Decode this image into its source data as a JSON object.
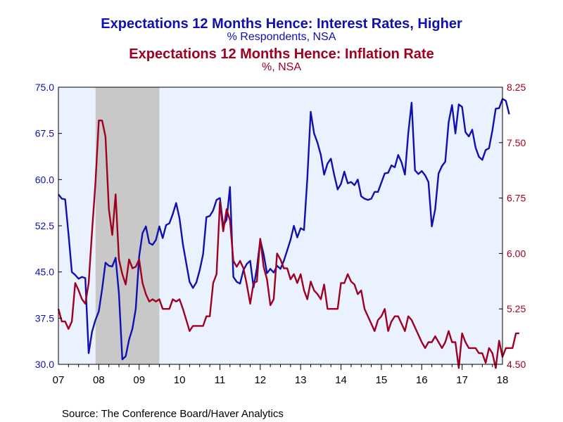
{
  "chart_data": {
    "type": "line",
    "titles": [
      {
        "text": "Expectations 12 Months Hence: Interest Rates, Higher",
        "color": "#1010b0"
      },
      {
        "text": "% Respondents, NSA",
        "color": "#1010b0"
      },
      {
        "text": "Expectations 12 Months Hence: Inflation Rate",
        "color": "#a00020"
      },
      {
        "text": "%, NSA",
        "color": "#a00020"
      }
    ],
    "source": "Source:  The Conference Board/Haver Analytics",
    "x_tick_labels": [
      "07",
      "08",
      "09",
      "10",
      "11",
      "12",
      "13",
      "14",
      "15",
      "16",
      "17",
      "18"
    ],
    "x_range": [
      2007.0,
      2018.0
    ],
    "left_axis": {
      "ticks": [
        "75.0",
        "67.5",
        "60.0",
        "52.5",
        "45.0",
        "37.5",
        "30.0"
      ],
      "ylim": [
        30.0,
        75.0
      ],
      "color": "#1010b0"
    },
    "right_axis": {
      "ticks": [
        "8.25",
        "7.50",
        "6.75",
        "6.00",
        "5.25",
        "4.50"
      ],
      "ylim": [
        4.5,
        8.25
      ],
      "color": "#a00020"
    },
    "recession": {
      "start": 2007.92,
      "end": 2009.5,
      "color": "#c8c8c8"
    },
    "plot_background": "#eaf2ff",
    "series": [
      {
        "axis": "left",
        "color": "#1010b0",
        "x_start": 2007.0,
        "step": 0.083333,
        "values": [
          57.6,
          56.9,
          56.8,
          51.2,
          45,
          44.5,
          43.9,
          44.2,
          44,
          31.8,
          35.3,
          37.2,
          38.6,
          42.2,
          46.5,
          46,
          45.9,
          47.3,
          41.5,
          30.8,
          31.3,
          34,
          35.8,
          39,
          47.5,
          51.3,
          52.4,
          49.7,
          49.4,
          50.2,
          52.4,
          50.5,
          52.6,
          52.9,
          54.4,
          56.2,
          53.7,
          49.5,
          46.4,
          43.4,
          42.4,
          43.3,
          45.3,
          47.9,
          53.9,
          54.1,
          55,
          56.7,
          57,
          52.5,
          53.5,
          58.8,
          44.2,
          43.4,
          43.1,
          45.3,
          46.3,
          46.8,
          42.5,
          45.6,
          50.2,
          47.9,
          44.8,
          45.5,
          44.9,
          46,
          45.5,
          46.8,
          48.5,
          50.2,
          52.5,
          50.6,
          52.1,
          51.8,
          60.2,
          71,
          67.5,
          66,
          64,
          60.8,
          62.6,
          63.4,
          60.7,
          58.4,
          59.3,
          61.3,
          59.4,
          59.6,
          59.1,
          60,
          57.3,
          56.9,
          56.7,
          56.9,
          58,
          58,
          59.5,
          61,
          61.1,
          62.3,
          62,
          64,
          62.8,
          60.8,
          67.5,
          72.5,
          61.5,
          60.9,
          61.4,
          60.7,
          59.6,
          52.4,
          55.2,
          61,
          62.2,
          62.9,
          69.3,
          72.1,
          67.5,
          72.2,
          71.8,
          67.7,
          67,
          68.1,
          65.2,
          63.7,
          63.2,
          64.8,
          65.1,
          68,
          71.5,
          71.6,
          73.1,
          72.8,
          70.6
        ]
      },
      {
        "axis": "right",
        "color": "#a00020",
        "x_start": 2007.0,
        "step": 0.083333,
        "values": [
          5.25,
          5.08,
          5.08,
          4.98,
          5.08,
          5.6,
          5.5,
          5.38,
          5.32,
          5.6,
          6.3,
          6.95,
          7.8,
          7.8,
          7.58,
          6.6,
          6.25,
          6.8,
          5.92,
          5.72,
          5.58,
          5.92,
          5.8,
          5.82,
          5.92,
          5.6,
          5.45,
          5.35,
          5.38,
          5.35,
          5.38,
          5.25,
          5.25,
          5.25,
          5.38,
          5.35,
          5.38,
          5.25,
          5.1,
          4.95,
          5.02,
          5.02,
          5.02,
          5.02,
          5.15,
          5.15,
          5.6,
          5.72,
          6.7,
          6.3,
          6.6,
          6.45,
          5.9,
          5.82,
          5.9,
          5.8,
          5.58,
          5.32,
          5.6,
          5.62,
          6.2,
          5.82,
          5.65,
          5.3,
          5.38,
          6.0,
          5.92,
          5.8,
          5.8,
          5.65,
          5.72,
          5.6,
          5.72,
          5.5,
          5.38,
          5.62,
          5.5,
          5.45,
          5.38,
          5.58,
          5.25,
          5.25,
          5.25,
          5.25,
          5.6,
          5.6,
          5.72,
          5.62,
          5.58,
          5.45,
          5.5,
          5.25,
          5.15,
          5.05,
          4.95,
          5.1,
          5.15,
          5.25,
          4.95,
          5.08,
          5.15,
          5.15,
          5.05,
          4.95,
          5.15,
          5.1,
          5.0,
          4.9,
          4.8,
          4.72,
          4.8,
          4.8,
          4.88,
          4.8,
          4.72,
          4.8,
          4.95,
          4.8,
          4.8,
          4.45,
          4.92,
          4.8,
          4.72,
          4.72,
          4.72,
          4.65,
          4.65,
          4.52,
          4.72,
          4.65,
          4.45,
          4.82,
          4.6,
          4.72,
          4.72,
          4.72,
          4.92,
          4.92
        ]
      }
    ]
  }
}
